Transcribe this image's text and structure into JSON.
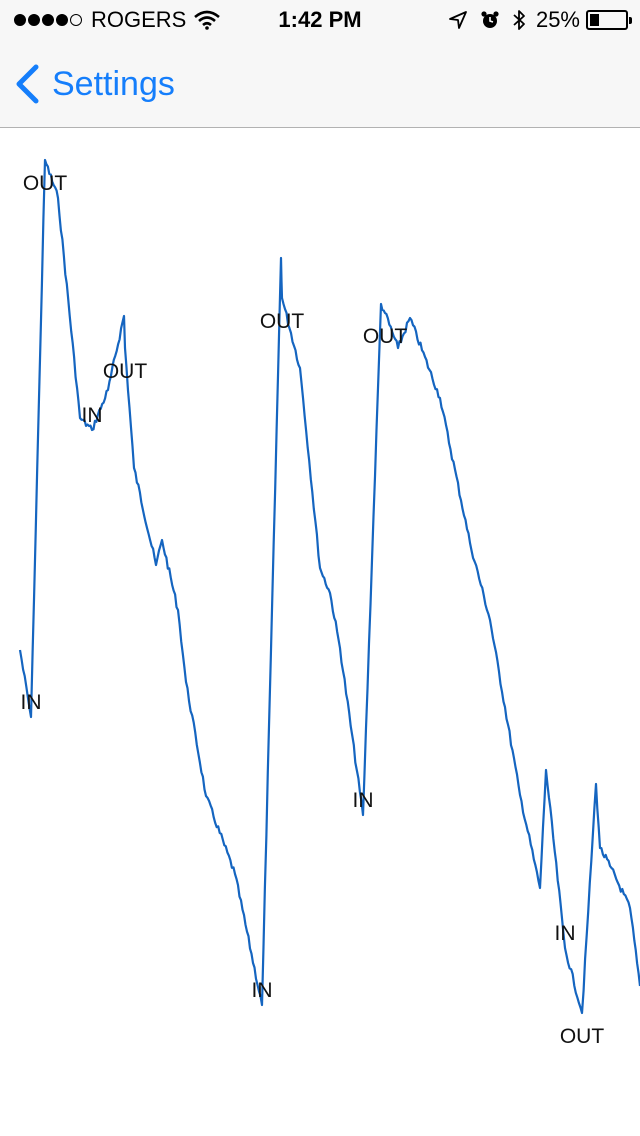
{
  "status_bar": {
    "signal_strength": 4,
    "signal_max": 5,
    "carrier": "ROGERS",
    "wifi_icon": "wifi-icon",
    "time": "1:42 PM",
    "location_icon": "location-arrow-icon",
    "alarm_icon": "alarm-clock-icon",
    "bluetooth_icon": "bluetooth-icon",
    "battery_percent": "25%",
    "battery_level": 0.25
  },
  "nav_bar": {
    "back_label": "Settings",
    "back_icon": "chevron-left-icon",
    "accent_color": "#157efb"
  },
  "chart_data": {
    "type": "line",
    "line_color": "#1565c0",
    "annotations": [
      {
        "label": "OUT",
        "point": 2
      },
      {
        "label": "IN",
        "point": 1
      },
      {
        "label": "OUT",
        "point": 8
      },
      {
        "label": "IN",
        "point": 5
      },
      {
        "label": "OUT",
        "point": 18
      },
      {
        "label": "IN",
        "point": 16
      },
      {
        "label": "OUT",
        "point": 25
      },
      {
        "label": "IN",
        "point": 23
      },
      {
        "label": "OUT",
        "point": 35
      },
      {
        "label": "IN",
        "point": 34
      }
    ],
    "x": [
      20,
      31,
      45,
      58,
      80,
      92,
      108,
      124,
      125,
      134,
      156,
      162,
      178,
      186,
      206,
      235,
      262,
      281,
      282,
      300,
      320,
      330,
      340,
      363,
      381,
      385,
      398,
      410,
      440,
      470,
      490,
      520,
      540,
      546,
      565,
      582,
      596,
      600,
      610,
      630,
      640
    ],
    "y": [
      522,
      589,
      32,
      70,
      290,
      302,
      262,
      188,
      220,
      340,
      437,
      412,
      482,
      554,
      668,
      746,
      877,
      130,
      170,
      240,
      440,
      465,
      520,
      687,
      176,
      185,
      220,
      190,
      270,
      415,
      492,
      667,
      760,
      642,
      820,
      885,
      656,
      720,
      738,
      780,
      858
    ]
  }
}
